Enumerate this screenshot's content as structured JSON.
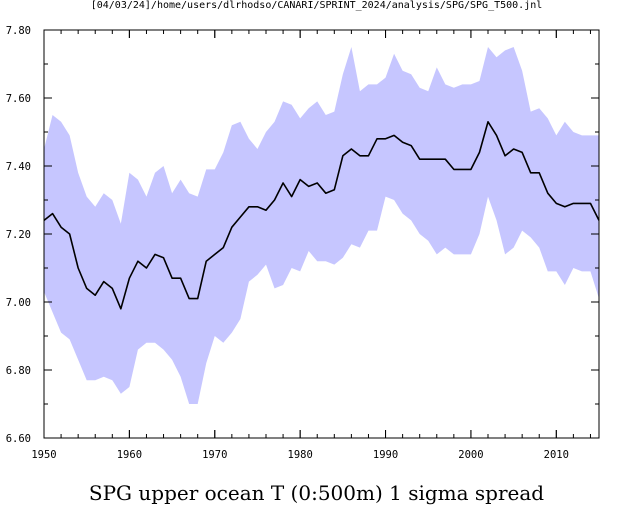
{
  "header": {
    "path_label": "[04/03/24]/home/users/dlrhodso/CANARI/SPRINT_2024/analysis/SPG/SPG_T500.jnl"
  },
  "chart_data": {
    "type": "line",
    "title": "SPG upper ocean T (0:500m) 1 sigma spread",
    "xlabel": "",
    "ylabel": "",
    "xlim": [
      1950,
      2015
    ],
    "ylim": [
      6.6,
      7.8
    ],
    "xticks": [
      1950,
      1960,
      1970,
      1980,
      1990,
      2000,
      2010
    ],
    "xtick_labels": [
      "1950",
      "1960",
      "1970",
      "1980",
      "1990",
      "2000",
      "2010"
    ],
    "yticks": [
      6.6,
      6.8,
      7.0,
      7.2,
      7.4,
      7.6,
      7.8
    ],
    "ytick_labels": [
      "6.60",
      "6.80",
      "7.00",
      "7.20",
      "7.40",
      "7.60",
      "7.80"
    ],
    "grid": false,
    "colors": {
      "line": "#000000",
      "band": "#c6c6ff",
      "axis": "#000000"
    },
    "x": [
      1950,
      1951,
      1952,
      1953,
      1954,
      1955,
      1956,
      1957,
      1958,
      1959,
      1960,
      1961,
      1962,
      1963,
      1964,
      1965,
      1966,
      1967,
      1968,
      1969,
      1970,
      1971,
      1972,
      1973,
      1974,
      1975,
      1976,
      1977,
      1978,
      1979,
      1980,
      1981,
      1982,
      1983,
      1984,
      1985,
      1986,
      1987,
      1988,
      1989,
      1990,
      1991,
      1992,
      1993,
      1994,
      1995,
      1996,
      1997,
      1998,
      1999,
      2000,
      2001,
      2002,
      2003,
      2004,
      2005,
      2006,
      2007,
      2008,
      2009,
      2010,
      2011,
      2012,
      2013,
      2014,
      2015
    ],
    "series": [
      {
        "type": "band",
        "upper": [
          7.45,
          7.55,
          7.53,
          7.49,
          7.38,
          7.31,
          7.28,
          7.32,
          7.3,
          7.23,
          7.38,
          7.36,
          7.31,
          7.38,
          7.4,
          7.32,
          7.36,
          7.32,
          7.31,
          7.39,
          7.39,
          7.44,
          7.52,
          7.53,
          7.48,
          7.45,
          7.5,
          7.53,
          7.59,
          7.58,
          7.54,
          7.57,
          7.59,
          7.55,
          7.56,
          7.67,
          7.75,
          7.62,
          7.64,
          7.64,
          7.66,
          7.73,
          7.68,
          7.67,
          7.63,
          7.62,
          7.69,
          7.64,
          7.63,
          7.64,
          7.64,
          7.65,
          7.75,
          7.72,
          7.74,
          7.75,
          7.68,
          7.56,
          7.57,
          7.54,
          7.49,
          7.53,
          7.5,
          7.49,
          7.49,
          7.49
        ],
        "lower": [
          7.03,
          6.97,
          6.91,
          6.89,
          6.83,
          6.77,
          6.77,
          6.78,
          6.77,
          6.73,
          6.75,
          6.86,
          6.88,
          6.88,
          6.86,
          6.83,
          6.78,
          6.7,
          6.7,
          6.82,
          6.9,
          6.88,
          6.91,
          6.95,
          7.06,
          7.08,
          7.11,
          7.04,
          7.05,
          7.1,
          7.09,
          7.15,
          7.12,
          7.12,
          7.11,
          7.13,
          7.17,
          7.16,
          7.21,
          7.21,
          7.31,
          7.3,
          7.26,
          7.24,
          7.2,
          7.18,
          7.14,
          7.16,
          7.14,
          7.14,
          7.14,
          7.2,
          7.31,
          7.24,
          7.14,
          7.16,
          7.21,
          7.19,
          7.16,
          7.09,
          7.09,
          7.05,
          7.1,
          7.09,
          7.09,
          7.01
        ]
      },
      {
        "type": "line",
        "values": [
          7.24,
          7.26,
          7.22,
          7.2,
          7.1,
          7.04,
          7.02,
          7.06,
          7.04,
          6.98,
          7.07,
          7.12,
          7.1,
          7.14,
          7.13,
          7.07,
          7.07,
          7.01,
          7.01,
          7.12,
          7.14,
          7.16,
          7.22,
          7.25,
          7.28,
          7.28,
          7.27,
          7.3,
          7.35,
          7.31,
          7.36,
          7.34,
          7.35,
          7.32,
          7.33,
          7.43,
          7.45,
          7.43,
          7.43,
          7.48,
          7.48,
          7.49,
          7.47,
          7.46,
          7.42,
          7.42,
          7.42,
          7.42,
          7.39,
          7.39,
          7.39,
          7.44,
          7.53,
          7.49,
          7.43,
          7.45,
          7.44,
          7.38,
          7.38,
          7.32,
          7.29,
          7.28,
          7.29,
          7.29,
          7.29,
          7.24
        ]
      }
    ]
  }
}
